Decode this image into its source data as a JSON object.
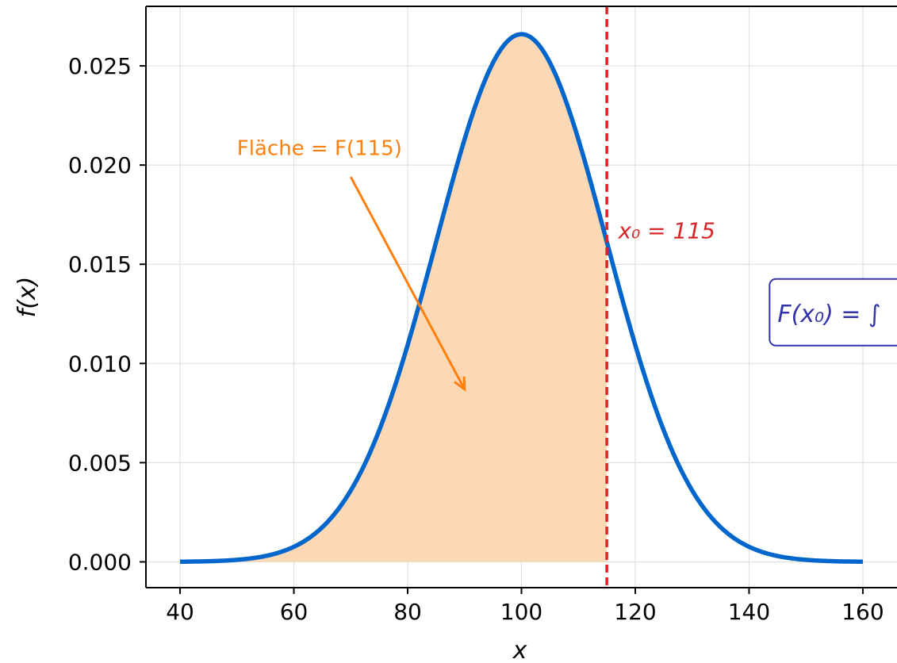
{
  "chart_data": {
    "type": "line",
    "function": "normal_pdf",
    "mu": 100,
    "sigma": 15,
    "x_range": [
      40,
      160
    ],
    "xlim": [
      34,
      166
    ],
    "ylim": [
      -0.0013,
      0.028
    ],
    "xticks": [
      40,
      60,
      80,
      100,
      120,
      140,
      160
    ],
    "xtick_labels": [
      "40",
      "60",
      "80",
      "100",
      "120",
      "140",
      "160"
    ],
    "yticks": [
      0.0,
      0.005,
      0.01,
      0.015,
      0.02,
      0.025
    ],
    "ytick_labels": [
      "0.000",
      "0.005",
      "0.010",
      "0.015",
      "0.020",
      "0.025"
    ],
    "xlabel": "x",
    "ylabel": "f(x)",
    "grid": true,
    "x0": 115,
    "shaded_region": [
      40,
      115
    ],
    "annotations": {
      "area_label": "Fläche = F(115)",
      "area_label_pos": [
        50,
        0.0205
      ],
      "area_arrow_from": [
        70,
        0.0194
      ],
      "area_arrow_to": [
        90,
        0.0087
      ],
      "x0_label": "x₀ = 115",
      "x0_label_pos": [
        117,
        0.0163
      ],
      "box_text": "F(x₀) = ∫",
      "box_pos": [
        145,
        0.0125
      ]
    },
    "colors": {
      "curve": "#0066cc",
      "fill": "#fdd8b5",
      "vline": "#d62728",
      "area_text": "#ff7f0e",
      "box_text": "#3333aa",
      "box_border": "#3333aa",
      "grid": "#e0e0e0"
    }
  }
}
